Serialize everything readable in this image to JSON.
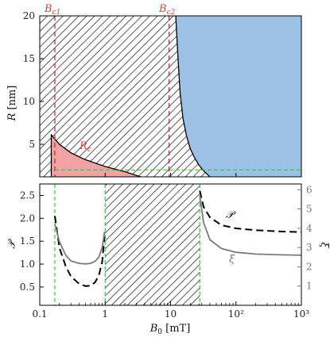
{
  "chart_data": [
    {
      "type": "area",
      "panel": "top",
      "ylabel": "R [nm]",
      "xscale": "log",
      "xlim": [
        0.1,
        1000
      ],
      "ylim": [
        1.2,
        20
      ],
      "yticks": [
        5,
        10,
        15,
        20
      ],
      "annotations": {
        "bc1": "B_{c1}",
        "bc2": "B_{c2}",
        "rc": "R_c"
      },
      "vlines": [
        {
          "name": "B_c1",
          "x": 0.17,
          "color": "#d7263d",
          "style": "dashed"
        },
        {
          "name": "B_c2",
          "x": 9.5,
          "color": "#d7263d",
          "style": "dashed"
        }
      ],
      "hlines": [
        {
          "y": 2.0,
          "x_start": 0.17,
          "x_end": 1000,
          "color": "#35c935",
          "style": "dashed"
        }
      ],
      "regions": [
        {
          "name": "hatched",
          "fill": "hatch"
        },
        {
          "name": "blue",
          "fill": "#9dc1e5"
        },
        {
          "name": "red",
          "fill": "#f1a3a3"
        }
      ],
      "boundary_blue": [
        {
          "x": 12.0,
          "y": 20.0
        },
        {
          "x": 13.0,
          "y": 15.0
        },
        {
          "x": 14.0,
          "y": 11.0
        },
        {
          "x": 15.5,
          "y": 8.0
        },
        {
          "x": 17.5,
          "y": 6.0
        },
        {
          "x": 20.0,
          "y": 4.5
        },
        {
          "x": 23.0,
          "y": 3.5
        },
        {
          "x": 27.0,
          "y": 2.6
        },
        {
          "x": 32.0,
          "y": 1.9
        },
        {
          "x": 40.0,
          "y": 1.2
        }
      ],
      "boundary_rc": [
        {
          "x": 0.15,
          "y": 6.1
        },
        {
          "x": 0.2,
          "y": 5.0
        },
        {
          "x": 0.3,
          "y": 4.0
        },
        {
          "x": 0.5,
          "y": 3.2
        },
        {
          "x": 1.0,
          "y": 2.4
        },
        {
          "x": 2.0,
          "y": 1.8
        },
        {
          "x": 3.5,
          "y": 1.2
        }
      ],
      "x_top_ticks": [
        0.1,
        1,
        10,
        100,
        1000
      ]
    },
    {
      "type": "line",
      "panel": "bottom",
      "xlabel": "B0 [mT]",
      "ylabel": "P",
      "ylabel_right": "ξ",
      "xscale": "log",
      "xlim": [
        0.1,
        1000
      ],
      "ylim": [
        0.1,
        2.75
      ],
      "ylim_right": [
        0,
        6.3
      ],
      "yticks": [
        0.5,
        1.0,
        1.5,
        2.0,
        2.5
      ],
      "yticks_right": [
        1,
        2,
        3,
        4,
        5,
        6
      ],
      "xticks": [
        0.1,
        1,
        10,
        100,
        1000
      ],
      "xticklabels": [
        "0.1",
        "1",
        "10",
        "10²",
        "10³"
      ],
      "vlines_green": [
        0.17,
        1.0,
        28
      ],
      "hatched_x_range": [
        1.0,
        28
      ],
      "series": [
        {
          "name": "P",
          "axis": "left",
          "color": "#000000",
          "style": "dashed",
          "segments": [
            [
              {
                "x": 0.17,
                "y": 2.05
              },
              {
                "x": 0.2,
                "y": 1.35
              },
              {
                "x": 0.25,
                "y": 0.95
              },
              {
                "x": 0.3,
                "y": 0.73
              },
              {
                "x": 0.4,
                "y": 0.57
              },
              {
                "x": 0.5,
                "y": 0.52
              },
              {
                "x": 0.6,
                "y": 0.53
              },
              {
                "x": 0.7,
                "y": 0.6
              },
              {
                "x": 0.8,
                "y": 0.75
              },
              {
                "x": 0.9,
                "y": 1.05
              },
              {
                "x": 0.98,
                "y": 1.6
              }
            ],
            [
              {
                "x": 28,
                "y": 2.6
              },
              {
                "x": 32,
                "y": 2.25
              },
              {
                "x": 40,
                "y": 2.02
              },
              {
                "x": 60,
                "y": 1.85
              },
              {
                "x": 100,
                "y": 1.78
              },
              {
                "x": 200,
                "y": 1.74
              },
              {
                "x": 500,
                "y": 1.71
              },
              {
                "x": 1000,
                "y": 1.7
              }
            ]
          ]
        },
        {
          "name": "ξ",
          "axis": "right",
          "color": "#7a7a7a",
          "style": "solid",
          "segments": [
            [
              {
                "x": 0.17,
                "y": 4.2
              },
              {
                "x": 0.2,
                "y": 3.3
              },
              {
                "x": 0.25,
                "y": 2.6
              },
              {
                "x": 0.3,
                "y": 2.3
              },
              {
                "x": 0.4,
                "y": 2.18
              },
              {
                "x": 0.5,
                "y": 2.15
              },
              {
                "x": 0.6,
                "y": 2.18
              },
              {
                "x": 0.7,
                "y": 2.28
              },
              {
                "x": 0.8,
                "y": 2.5
              },
              {
                "x": 0.9,
                "y": 3.0
              },
              {
                "x": 0.98,
                "y": 3.8
              }
            ],
            [
              {
                "x": 28,
                "y": 5.7
              },
              {
                "x": 32,
                "y": 4.3
              },
              {
                "x": 40,
                "y": 3.4
              },
              {
                "x": 60,
                "y": 2.95
              },
              {
                "x": 100,
                "y": 2.75
              },
              {
                "x": 200,
                "y": 2.66
              },
              {
                "x": 500,
                "y": 2.62
              },
              {
                "x": 1000,
                "y": 2.6
              }
            ]
          ]
        }
      ]
    }
  ]
}
